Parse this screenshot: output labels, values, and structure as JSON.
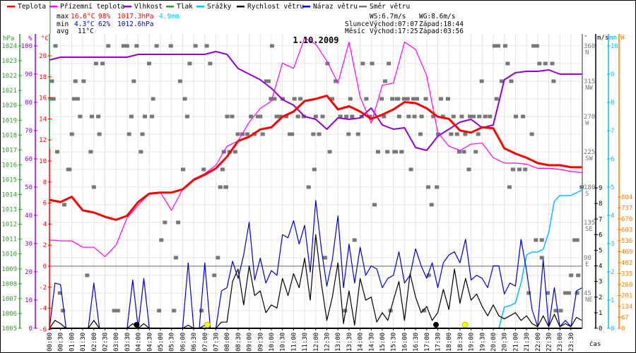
{
  "legend": [
    {
      "label": "Teplota",
      "color": "#ff0000"
    },
    {
      "label": "Přízemní teplota",
      "color": "#ff00ff"
    },
    {
      "label": "Vlhkost",
      "color": "#9400d3"
    },
    {
      "label": "Tlak",
      "color": "#339933"
    },
    {
      "label": "Srážky",
      "color": "#00bfff"
    },
    {
      "label": "Rychlost větru",
      "color": "#000000"
    },
    {
      "label": "Náraz větru",
      "color": "#0000cc"
    },
    {
      "label": "Směr větru",
      "color": "#777777"
    }
  ],
  "stats": {
    "max_label": "max",
    "max_temp": "16.6°C",
    "max_hum": "98%",
    "max_press": "1017.3hPa",
    "max_rain": "4.9mm",
    "min_label": "min",
    "min_temp": "4.3°C",
    "min_hum": "62%",
    "min_press": "1012.6hPa",
    "avg_label": "avg",
    "avg_temp": "11°C"
  },
  "astro": {
    "ws": "WS:6.7m/s",
    "wg": "WG:8.6m/s",
    "sun_label": "Slunce",
    "sun_rise": "Východ:07:07",
    "sun_set": "Západ:18:44",
    "moon_label": "Měsíc",
    "moon_rise": "Východ:17:25",
    "moon_set": "Západ:03:56"
  },
  "chart_data": {
    "type": "line",
    "title": "1.10.2009",
    "xlabel": "čas",
    "x_range_hours": [
      0,
      24
    ],
    "x_tick_labels": [
      "00:00",
      "00:30",
      "01:00",
      "01:30",
      "02:00",
      "02:30",
      "03:00",
      "03:30",
      "04:00",
      "04:30",
      "05:00",
      "05:30",
      "06:00",
      "06:30",
      "07:00",
      "07:30",
      "08:00",
      "08:30",
      "09:00",
      "09:30",
      "10:00",
      "10:30",
      "11:00",
      "11:30",
      "12:00",
      "12:30",
      "13:00",
      "13:30",
      "14:00",
      "14:30",
      "15:00",
      "15:30",
      "16:00",
      "16:30",
      "17:00",
      "17:30",
      "18:00",
      "18:30",
      "19:00",
      "19:30",
      "20:00",
      "20:30",
      "21:00",
      "21:30",
      "22:00",
      "22:30",
      "23:00",
      "23:30"
    ],
    "axes": {
      "pressure": {
        "unit": "hPa",
        "range": [
          1005,
          1024
        ],
        "ticks": [
          1005,
          1006,
          1007,
          1008,
          1009,
          1010,
          1011,
          1012,
          1013,
          1014,
          1015,
          1016,
          1017,
          1018,
          1019,
          1020,
          1021,
          1022,
          1023,
          1024
        ],
        "color": "#339933"
      },
      "humidity": {
        "unit": "%",
        "range": [
          0,
          100
        ],
        "ticks": [
          0,
          10,
          20,
          30,
          40,
          50,
          60,
          70,
          80,
          90,
          100
        ],
        "color": "#9400d3"
      },
      "temperature": {
        "unit": "°C",
        "range": [
          -6,
          20
        ],
        "ticks": [
          -6,
          -4,
          -2,
          0,
          2,
          4,
          6,
          8,
          10,
          12,
          14,
          16,
          18,
          20
        ],
        "color": "#ff0000"
      },
      "direction": {
        "unit": "°",
        "range": [
          0,
          360
        ],
        "ticks": [
          {
            "v": 360,
            "l": "360",
            "c": "N"
          },
          {
            "v": 315,
            "l": "315",
            "c": "NW"
          },
          {
            "v": 270,
            "l": "270",
            "c": "W"
          },
          {
            "v": 225,
            "l": "225",
            "c": "SW"
          },
          {
            "v": 180,
            "l": "180",
            "c": "S"
          },
          {
            "v": 135,
            "l": "135",
            "c": "SE"
          },
          {
            "v": 90,
            "l": "90",
            "c": "E"
          },
          {
            "v": 45,
            "l": "45",
            "c": "NE"
          }
        ],
        "color": "#777777"
      },
      "wind": {
        "unit": "m/s",
        "range": [
          0,
          9
        ],
        "ticks": [
          0,
          1,
          2,
          3,
          4,
          5,
          6,
          7,
          8,
          9
        ],
        "color": "#000000"
      },
      "rain": {
        "unit": "mm",
        "range": [
          0,
          10
        ],
        "ticks": [
          0,
          1,
          2,
          3,
          4,
          5,
          6,
          7,
          8,
          9,
          10
        ],
        "color": "#00bfff"
      },
      "radiation": {
        "unit": "W",
        "range": [
          0,
          804
        ],
        "ticks": [
          0,
          67,
          134,
          201,
          268,
          335,
          402,
          469,
          536,
          603,
          670,
          737,
          804
        ],
        "color": "#ff8000"
      }
    },
    "temperature_30min": [
      6.3,
      6.1,
      6.6,
      5.3,
      5.1,
      4.7,
      4.4,
      4.8,
      6.1,
      6.9,
      7.0,
      7.0,
      7.3,
      8.2,
      8.7,
      9.3,
      10.4,
      11.9,
      12.3,
      13.0,
      13.2,
      14.2,
      14.7,
      15.7,
      15.9,
      16.2,
      14.9,
      15.2,
      14.7,
      14.0,
      14.4,
      14.9,
      15.6,
      15.5,
      15.0,
      14.2,
      14.0,
      12.9,
      12.7,
      13.2,
      13.1,
      11.2,
      10.7,
      10.3,
      9.8,
      9.6,
      9.6,
      9.4,
      9.4
    ],
    "apparent_temperature_30min": [
      2.5,
      2.4,
      2.4,
      1.8,
      1.8,
      0.9,
      2.0,
      4.6,
      5.8,
      6.9,
      7.0,
      5.3,
      7.3,
      8.3,
      8.8,
      9.6,
      11.4,
      11.9,
      13.7,
      15.0,
      15.7,
      19.3,
      18.8,
      21.7,
      21.1,
      19.5,
      17.4,
      21.3,
      16.1,
      13.6,
      17.2,
      17.4,
      21.3,
      20.6,
      18.1,
      12.7,
      11.4,
      11.0,
      11.6,
      11.7,
      10.3,
      9.8,
      9.8,
      9.7,
      9.3,
      9.3,
      9.2,
      9.0,
      8.9
    ],
    "humidity_30min": [
      95,
      96,
      96,
      96,
      96,
      96,
      96,
      96,
      97,
      97,
      97,
      97,
      97,
      97,
      97,
      98,
      97,
      92,
      90,
      88,
      85,
      81,
      79,
      75,
      74,
      70.5,
      74.5,
      74,
      74.5,
      78,
      72,
      70.5,
      71,
      64,
      63,
      68,
      70.5,
      73,
      74,
      71,
      72,
      88,
      90.5,
      91,
      91,
      91.5,
      90,
      90,
      90
    ],
    "wind_gust_15min": [
      0,
      2.9,
      2.8,
      0,
      0,
      0,
      0,
      0,
      2.9,
      0,
      0,
      0,
      0,
      0,
      0,
      3.1,
      0,
      3.2,
      0,
      0,
      0,
      0,
      0,
      0,
      0,
      4.2,
      0,
      0,
      4.2,
      0,
      0,
      2.4,
      2.6,
      4.3,
      3.2,
      4.7,
      6.8,
      3.1,
      4.5,
      2.9,
      3.7,
      3.4,
      6.0,
      5.8,
      6.9,
      5.4,
      6.6,
      3.6,
      8.2,
      5.1,
      2.7,
      4.4,
      7.2,
      2.6,
      5.4,
      2.9,
      5.2,
      3.4,
      4.0,
      3.8,
      2.6,
      3.2,
      3.4,
      4.9,
      2.9,
      3.4,
      5.1,
      4.0,
      3.2,
      4.2,
      2.6,
      4.2,
      4.7,
      4.9,
      4.2,
      5.7,
      3.1,
      3.4,
      3.2,
      2.6,
      4.0,
      4.0,
      2.2,
      2.9,
      2.7,
      5.7,
      3.7,
      1.2,
      0.1,
      4.4,
      0.1,
      2.6,
      0.1,
      0.5,
      0.1,
      2.4,
      2.6
    ],
    "wind_speed_15min": [
      0,
      0.5,
      0.3,
      0,
      0,
      0,
      0,
      0,
      0.5,
      0,
      0,
      0,
      0,
      0,
      0,
      0.3,
      0,
      0.3,
      0,
      0,
      0,
      0,
      0,
      0,
      0,
      0.2,
      0,
      0,
      0.2,
      0,
      0,
      0.4,
      0.4,
      3.0,
      3.8,
      1.5,
      4.0,
      2.1,
      2.4,
      1.0,
      1.5,
      1.3,
      3.2,
      2.1,
      3.5,
      2.6,
      4.5,
      1.8,
      6.0,
      2.9,
      0.5,
      2.0,
      4.2,
      0.3,
      2.4,
      0.2,
      3.2,
      1.8,
      2.0,
      0.4,
      1.0,
      0.5,
      1.8,
      3.0,
      0.5,
      3.5,
      2.0,
      1.0,
      1.4,
      0.5,
      1.0,
      2.5,
      1.2,
      3.8,
      1.6,
      3.2,
      1.8,
      2.2,
      1.4,
      0.8,
      1.5,
      0.8,
      0.6,
      0.8,
      1.0,
      0.5,
      0.8,
      0.3,
      0.1,
      0.8,
      0.1,
      0.9,
      0.1,
      0.3,
      0.1,
      0.7,
      0.5
    ],
    "rain_cumulative_15min": [
      0,
      0,
      0,
      0,
      0,
      0,
      0,
      0,
      0,
      0,
      0,
      0,
      0,
      0,
      0,
      0,
      0,
      0,
      0,
      0,
      0,
      0,
      0,
      0,
      0,
      0,
      0,
      0,
      0,
      0,
      0,
      0,
      0,
      0,
      0,
      0,
      0,
      0,
      0,
      0,
      0,
      0,
      0,
      0,
      0,
      0,
      0,
      0,
      0,
      0,
      0,
      0,
      0,
      0,
      0,
      0,
      0,
      0,
      0,
      0,
      0,
      0,
      0,
      0,
      0,
      0,
      0,
      0,
      0,
      0,
      0,
      0,
      0,
      0,
      0,
      0,
      0,
      0,
      0,
      0,
      0,
      0,
      0.75,
      0.8,
      0.9,
      1.6,
      2.6,
      2.7,
      2.7,
      2.8,
      3.4,
      4.5,
      4.7,
      4.7,
      4.7,
      4.8,
      4.9
    ],
    "wind_direction_points": [
      [
        0.27,
        360
      ],
      [
        0.11,
        315
      ],
      [
        0.05,
        292.5
      ],
      [
        0.18,
        292.5
      ],
      [
        0.35,
        225
      ],
      [
        0.67,
        157.5
      ],
      [
        0.47,
        45
      ],
      [
        0.61,
        22.5
      ],
      [
        0.85,
        202.5
      ],
      [
        0.9,
        202.5
      ],
      [
        1.01,
        247.5
      ],
      [
        1.11,
        292.5
      ],
      [
        1.27,
        292.5
      ],
      [
        1.17,
        315
      ],
      [
        1.54,
        315
      ],
      [
        1.38,
        270
      ],
      [
        1.7,
        67.5
      ],
      [
        1.91,
        270
      ],
      [
        1.86,
        225
      ],
      [
        2.0,
        180
      ],
      [
        2.1,
        337.5
      ],
      [
        2.39,
        337.5
      ],
      [
        2.2,
        270
      ],
      [
        2.25,
        247.5
      ],
      [
        2.65,
        360
      ],
      [
        2.92,
        22.5
      ],
      [
        3.08,
        22.5
      ],
      [
        3.34,
        360
      ],
      [
        3.5,
        360
      ],
      [
        3.59,
        247.5
      ],
      [
        3.69,
        270
      ],
      [
        3.8,
        315
      ],
      [
        3.93,
        360
      ],
      [
        4.12,
        225
      ],
      [
        4.19,
        247.5
      ],
      [
        4.3,
        270
      ],
      [
        4.49,
        337.5
      ],
      [
        4.62,
        270
      ],
      [
        4.67,
        292.5
      ],
      [
        4.83,
        360
      ],
      [
        4.94,
        22.5
      ],
      [
        5.04,
        112.5
      ],
      [
        5.2,
        135
      ],
      [
        5.47,
        360
      ],
      [
        5.61,
        22.5
      ],
      [
        5.7,
        90
      ],
      [
        5.8,
        135
      ],
      [
        5.89,
        315
      ],
      [
        6.02,
        202.5
      ],
      [
        6.1,
        292.5
      ],
      [
        6.21,
        270
      ],
      [
        6.32,
        337.5
      ],
      [
        6.58,
        360
      ],
      [
        6.85,
        22.5
      ],
      [
        6.95,
        202.5
      ],
      [
        7.09,
        360
      ],
      [
        7.24,
        337.5
      ],
      [
        7.43,
        67.5
      ],
      [
        7.59,
        90
      ],
      [
        7.7,
        180
      ],
      [
        7.8,
        202.5
      ],
      [
        7.86,
        225
      ],
      [
        7.96,
        180
      ],
      [
        7.94,
        180
      ],
      [
        8.12,
        225
      ],
      [
        8.37,
        225
      ],
      [
        10.03,
        360
      ],
      [
        9.77,
        315
      ],
      [
        9.87,
        315
      ],
      [
        8.49,
        247.5
      ],
      [
        8.7,
        247.5
      ],
      [
        8.92,
        247.5
      ],
      [
        9.24,
        247.5
      ],
      [
        9.61,
        247.5
      ],
      [
        10.83,
        247.5
      ],
      [
        10.93,
        247.5
      ],
      [
        11.89,
        247.5
      ],
      [
        12.15,
        247.5
      ],
      [
        13.48,
        247.5
      ],
      [
        13.91,
        247.5
      ],
      [
        8.01,
        270
      ],
      [
        8.23,
        270
      ],
      [
        9.08,
        270
      ],
      [
        9.39,
        270
      ],
      [
        9.5,
        270
      ],
      [
        10.24,
        270
      ],
      [
        10.4,
        270
      ],
      [
        10.67,
        270
      ],
      [
        11.2,
        270
      ],
      [
        11.46,
        270
      ],
      [
        12.0,
        270
      ],
      [
        12.31,
        270
      ],
      [
        13.11,
        270
      ],
      [
        13.38,
        270
      ],
      [
        13.64,
        270
      ],
      [
        14.07,
        270
      ],
      [
        14.44,
        270
      ],
      [
        15.07,
        270
      ],
      [
        15.76,
        270
      ],
      [
        9.98,
        292.5
      ],
      [
        10.14,
        292.5
      ],
      [
        10.51,
        292.5
      ],
      [
        11.04,
        292.5
      ],
      [
        11.31,
        292.5
      ],
      [
        12.74,
        292.5
      ],
      [
        13.56,
        292.5
      ],
      [
        14.28,
        292.5
      ],
      [
        14.97,
        292.5
      ],
      [
        15.45,
        292.5
      ],
      [
        15.71,
        292.5
      ],
      [
        12.53,
        337.5
      ],
      [
        14.12,
        337.5
      ],
      [
        14.54,
        337.5
      ],
      [
        15.29,
        337.5
      ],
      [
        12.9,
        315
      ],
      [
        15.13,
        315
      ],
      [
        11.94,
        202.5
      ],
      [
        11.68,
        180
      ],
      [
        14.65,
        157.5
      ],
      [
        12.63,
        225
      ],
      [
        14.81,
        225
      ],
      [
        15.23,
        225
      ],
      [
        15.55,
        225
      ],
      [
        15.87,
        225
      ],
      [
        13.75,
        112.5
      ],
      [
        12.42,
        90
      ],
      [
        13.32,
        22.5
      ],
      [
        15.37,
        22.5
      ],
      [
        20.06,
        360
      ],
      [
        20.22,
        360
      ],
      [
        20.54,
        360
      ],
      [
        21.82,
        360
      ],
      [
        21.97,
        360
      ],
      [
        20.65,
        337.5
      ],
      [
        22.08,
        337.5
      ],
      [
        22.35,
        337.5
      ],
      [
        22.66,
        337.5
      ],
      [
        19.48,
        315
      ],
      [
        20.38,
        315
      ],
      [
        20.81,
        315
      ],
      [
        22.72,
        315
      ],
      [
        15.66,
        292.5
      ],
      [
        15.98,
        292.5
      ],
      [
        16.14,
        292.5
      ],
      [
        16.4,
        292.5
      ],
      [
        16.56,
        292.5
      ],
      [
        16.96,
        292.5
      ],
      [
        17.64,
        292.5
      ],
      [
        17.96,
        292.5
      ],
      [
        20.15,
        292.5
      ],
      [
        16.19,
        270
      ],
      [
        16.45,
        270
      ],
      [
        16.77,
        270
      ],
      [
        17.3,
        270
      ],
      [
        17.73,
        270
      ],
      [
        18.21,
        270
      ],
      [
        18.58,
        270
      ],
      [
        18.95,
        270
      ],
      [
        19.11,
        270
      ],
      [
        19.37,
        270
      ],
      [
        19.64,
        270
      ],
      [
        19.85,
        270
      ],
      [
        21.02,
        270
      ],
      [
        21.34,
        270
      ],
      [
        16.72,
        247.5
      ],
      [
        17.52,
        247.5
      ],
      [
        18.1,
        247.5
      ],
      [
        18.37,
        247.5
      ],
      [
        18.74,
        247.5
      ],
      [
        19.32,
        247.5
      ],
      [
        21.74,
        247.5
      ],
      [
        15.61,
        225
      ],
      [
        15.87,
        225
      ],
      [
        18.47,
        225
      ],
      [
        18.68,
        225
      ],
      [
        19.21,
        225
      ],
      [
        16.29,
        202.5
      ],
      [
        18.9,
        202.5
      ],
      [
        20.89,
        202.5
      ],
      [
        21.18,
        202.5
      ],
      [
        21.44,
        202.5
      ],
      [
        17.07,
        180
      ],
      [
        17.46,
        180
      ],
      [
        20.73,
        180
      ],
      [
        23.99,
        180
      ],
      [
        17.22,
        157.5
      ],
      [
        21.92,
        112.5
      ],
      [
        22.19,
        112.5
      ],
      [
        23.67,
        112.5
      ],
      [
        23.78,
        112.5
      ],
      [
        22.19,
        90
      ],
      [
        23.51,
        67.5
      ],
      [
        23.83,
        67.5
      ],
      [
        17.09,
        67.5
      ],
      [
        21.6,
        45
      ],
      [
        22.45,
        45
      ],
      [
        23.25,
        45
      ],
      [
        23.41,
        45
      ],
      [
        23.78,
        45
      ],
      [
        16.88,
        22.5
      ],
      [
        22.82,
        22.5
      ],
      [
        23.04,
        22.5
      ]
    ],
    "events": [
      {
        "name": "moonset",
        "hour": 3.93,
        "color": "#000000"
      },
      {
        "name": "sunrise",
        "hour": 7.12,
        "color": "#ffff00"
      },
      {
        "name": "moonrise",
        "hour": 17.42,
        "color": "#000000"
      },
      {
        "name": "sunset",
        "hour": 18.73,
        "color": "#ffff00"
      }
    ]
  }
}
